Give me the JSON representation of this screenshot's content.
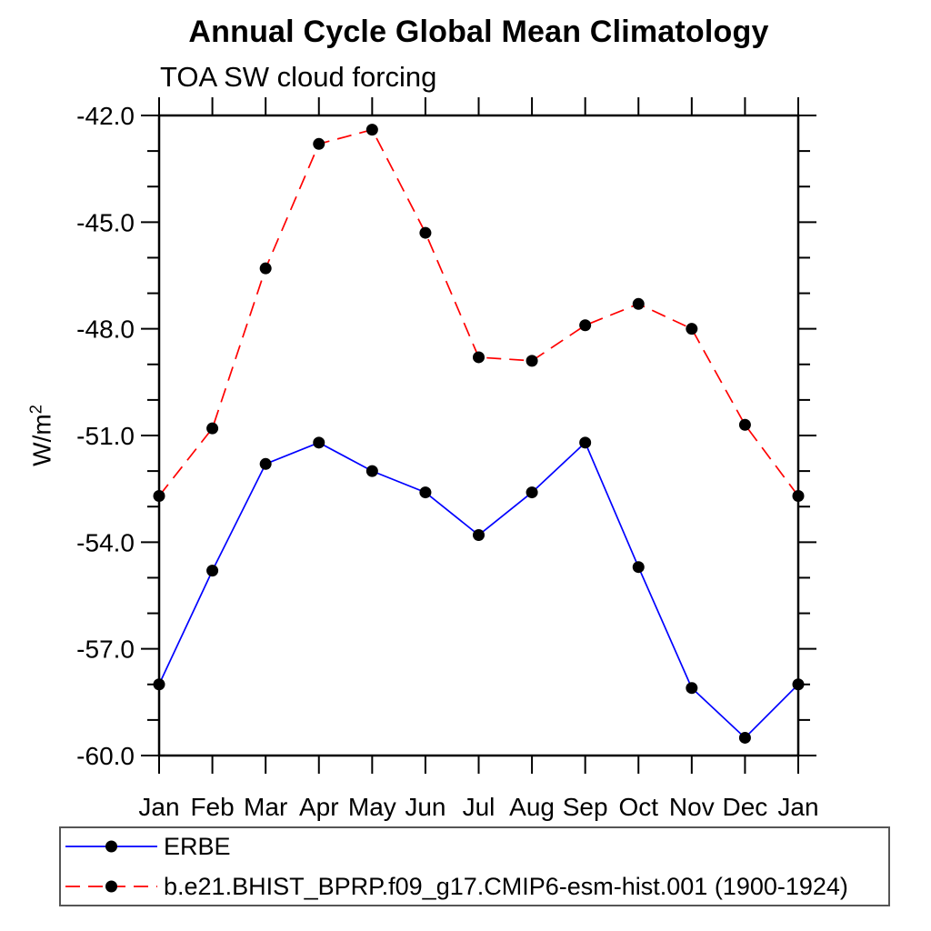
{
  "chart_data": {
    "type": "line",
    "title": "Annual Cycle Global Mean Climatology",
    "subtitle": "TOA SW cloud forcing",
    "ylabel_base": "W/m",
    "ylabel_exp": "2",
    "x_categories": [
      "Jan",
      "Feb",
      "Mar",
      "Apr",
      "May",
      "Jun",
      "Jul",
      "Aug",
      "Sep",
      "Oct",
      "Nov",
      "Dec",
      "Jan"
    ],
    "ylim": [
      -60.0,
      -42.0
    ],
    "ytick_major_values": [
      -42.0,
      -45.0,
      -48.0,
      -51.0,
      -54.0,
      -57.0,
      -60.0
    ],
    "ytick_major_labels": [
      "-42.0",
      "-45.0",
      "-48.0",
      "-51.0",
      "-54.0",
      "-57.0",
      "-60.0"
    ],
    "ytick_minor_step": 1.0,
    "grid": "off",
    "axis_color": "#000000",
    "legend_position": "framed box below plot, left-aligned",
    "series": [
      {
        "name": "ERBE",
        "color": "#0000ff",
        "line_style": "solid",
        "marker": "filled-circle",
        "marker_color": "#000000",
        "values": [
          -58.0,
          -54.8,
          -51.8,
          -51.2,
          -52.0,
          -52.6,
          -53.8,
          -52.6,
          -51.2,
          -54.7,
          -58.1,
          -59.5,
          -58.0
        ]
      },
      {
        "name": "b.e21.BHIST_BPRP.f09_g17.CMIP6-esm-hist.001 (1900-1924)",
        "color": "#ff0000",
        "line_style": "dashed",
        "marker": "filled-circle",
        "marker_color": "#000000",
        "values": [
          -52.7,
          -50.8,
          -46.3,
          -42.8,
          -42.4,
          -45.3,
          -48.8,
          -48.9,
          -47.9,
          -47.3,
          -48.0,
          -50.7,
          -52.7
        ]
      }
    ]
  }
}
